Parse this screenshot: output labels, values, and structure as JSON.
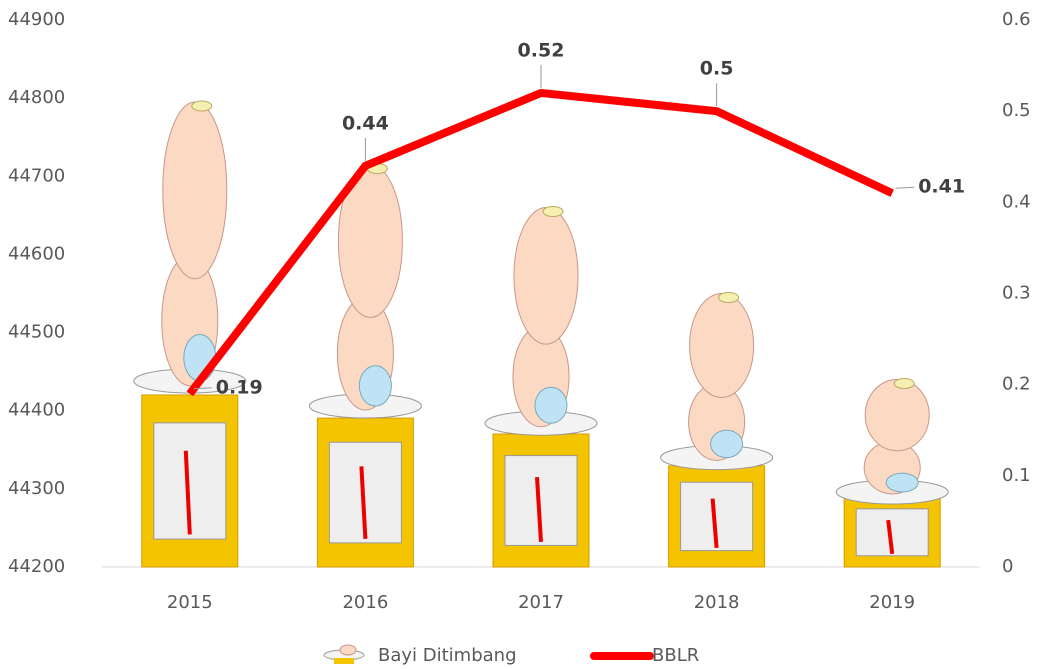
{
  "chart_data": {
    "type": "bar-line",
    "categories": [
      "2015",
      "2016",
      "2017",
      "2018",
      "2019"
    ],
    "series": [
      {
        "name": "Bayi Ditimbang",
        "type": "bar",
        "color": "#f5c400",
        "axis": "y",
        "values": [
          44795,
          44715,
          44660,
          44550,
          44440
        ]
      },
      {
        "name": "BBLR",
        "type": "line",
        "color": "#ff0000",
        "axis": "y2",
        "values": [
          0.19,
          0.44,
          0.52,
          0.5,
          0.41
        ]
      }
    ],
    "ylim": [
      44200,
      44900
    ],
    "yticks": [
      44200,
      44300,
      44400,
      44500,
      44600,
      44700,
      44800,
      44900
    ],
    "y2lim": [
      0,
      0.6
    ],
    "y2ticks": [
      0,
      0.1,
      0.2,
      0.3,
      0.4,
      0.5,
      0.6
    ],
    "legend": "bottom"
  }
}
